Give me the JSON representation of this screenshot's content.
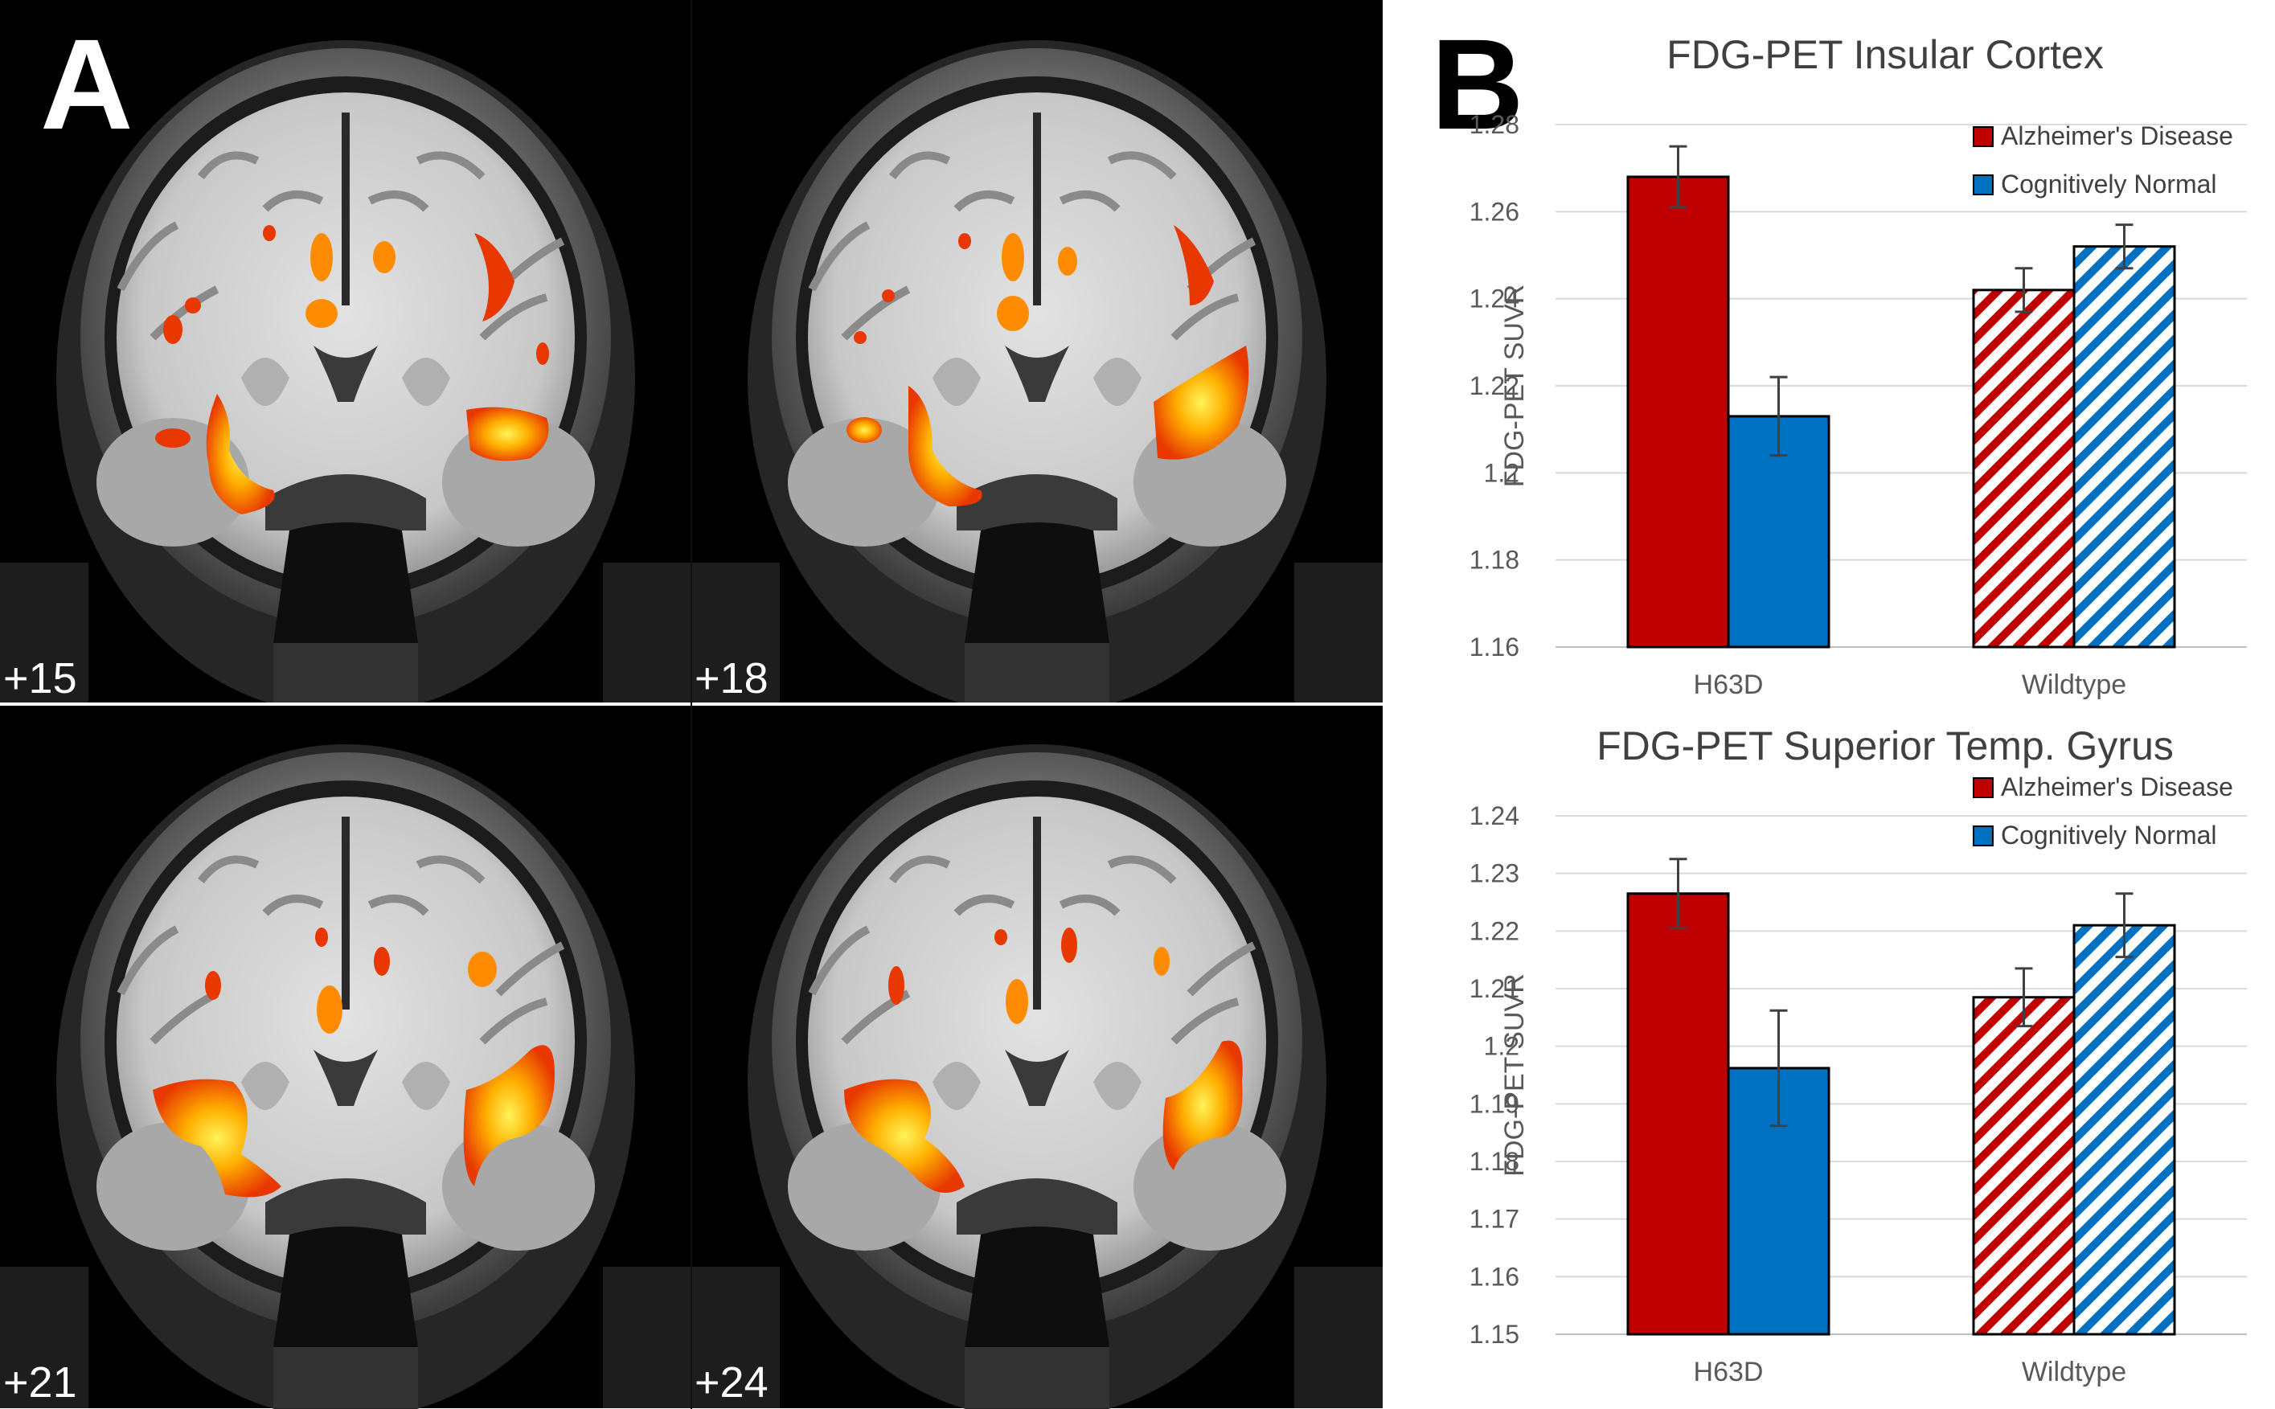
{
  "panel_a": {
    "label": "A",
    "slices": [
      {
        "label": "+15"
      },
      {
        "label": "+18"
      },
      {
        "label": "+21"
      },
      {
        "label": "+24"
      }
    ]
  },
  "panel_b": {
    "label": "B"
  },
  "colors": {
    "alzheimers": "#C00000",
    "cognitively_normal": "#0070C0",
    "heat_low": "#E83800",
    "heat_mid": "#FF8C00",
    "heat_high": "#FFF35A"
  },
  "chart_data": [
    {
      "type": "bar",
      "title": "FDG-PET Insular Cortex",
      "ylabel": "FDG-PET SUVR",
      "xlabel": "",
      "categories": [
        "H63D",
        "Wildtype"
      ],
      "ylim": [
        1.16,
        1.28
      ],
      "yticks": [
        "1.16",
        "1.18",
        "1.2",
        "1.22",
        "1.24",
        "1.26",
        "1.28"
      ],
      "grid": true,
      "legend_position": "top-right",
      "series": [
        {
          "name": "Alzheimer's Disease",
          "values": [
            1.268,
            1.242
          ],
          "errors": [
            0.007,
            0.005
          ],
          "hatched": [
            false,
            true
          ]
        },
        {
          "name": "Cognitively Normal",
          "values": [
            1.213,
            1.252
          ],
          "errors": [
            0.009,
            0.005
          ],
          "hatched": [
            false,
            true
          ]
        }
      ]
    },
    {
      "type": "bar",
      "title": "FDG-PET Superior Temp. Gyrus",
      "ylabel": "FDG-PET SUVR",
      "xlabel": "",
      "categories": [
        "H63D",
        "Wildtype"
      ],
      "ylim": [
        1.15,
        1.24
      ],
      "yticks": [
        "1.15",
        "1.16",
        "1.17",
        "1.18",
        "1.19",
        "1.2",
        "1.21",
        "1.22",
        "1.23",
        "1.24"
      ],
      "grid": true,
      "legend_position": "top-right",
      "series": [
        {
          "name": "Alzheimer's Disease",
          "values": [
            1.2265,
            1.2085
          ],
          "errors": [
            0.006,
            0.005
          ],
          "hatched": [
            false,
            true
          ]
        },
        {
          "name": "Cognitively Normal",
          "values": [
            1.1962,
            1.221
          ],
          "errors": [
            0.01,
            0.0055
          ],
          "hatched": [
            false,
            true
          ]
        }
      ]
    }
  ]
}
